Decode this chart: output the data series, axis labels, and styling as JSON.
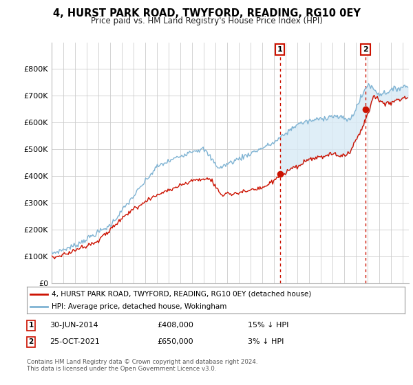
{
  "title": "4, HURST PARK ROAD, TWYFORD, READING, RG10 0EY",
  "subtitle": "Price paid vs. HM Land Registry's House Price Index (HPI)",
  "ylim": [
    0,
    900000
  ],
  "yticks": [
    0,
    100000,
    200000,
    300000,
    400000,
    500000,
    600000,
    700000,
    800000
  ],
  "ytick_labels": [
    "£0",
    "£100K",
    "£200K",
    "£300K",
    "£400K",
    "£500K",
    "£600K",
    "£700K",
    "£800K"
  ],
  "hpi_color": "#7fb3d3",
  "hpi_fill_color": "#d8eaf5",
  "price_color": "#cc1100",
  "sale1_x": 2014.5,
  "sale1_y": 408000,
  "sale1_date": "30-JUN-2014",
  "sale1_price": 408000,
  "sale1_label": "15% ↓ HPI",
  "sale2_x": 2021.8,
  "sale2_y": 650000,
  "sale2_date": "25-OCT-2021",
  "sale2_price": 650000,
  "sale2_label": "3% ↓ HPI",
  "legend_line1": "4, HURST PARK ROAD, TWYFORD, READING, RG10 0EY (detached house)",
  "legend_line2": "HPI: Average price, detached house, Wokingham",
  "footer": "Contains HM Land Registry data © Crown copyright and database right 2024.\nThis data is licensed under the Open Government Licence v3.0.",
  "background_color": "#ffffff",
  "grid_color": "#cccccc",
  "xlim_start": 1995,
  "xlim_end": 2025.5
}
